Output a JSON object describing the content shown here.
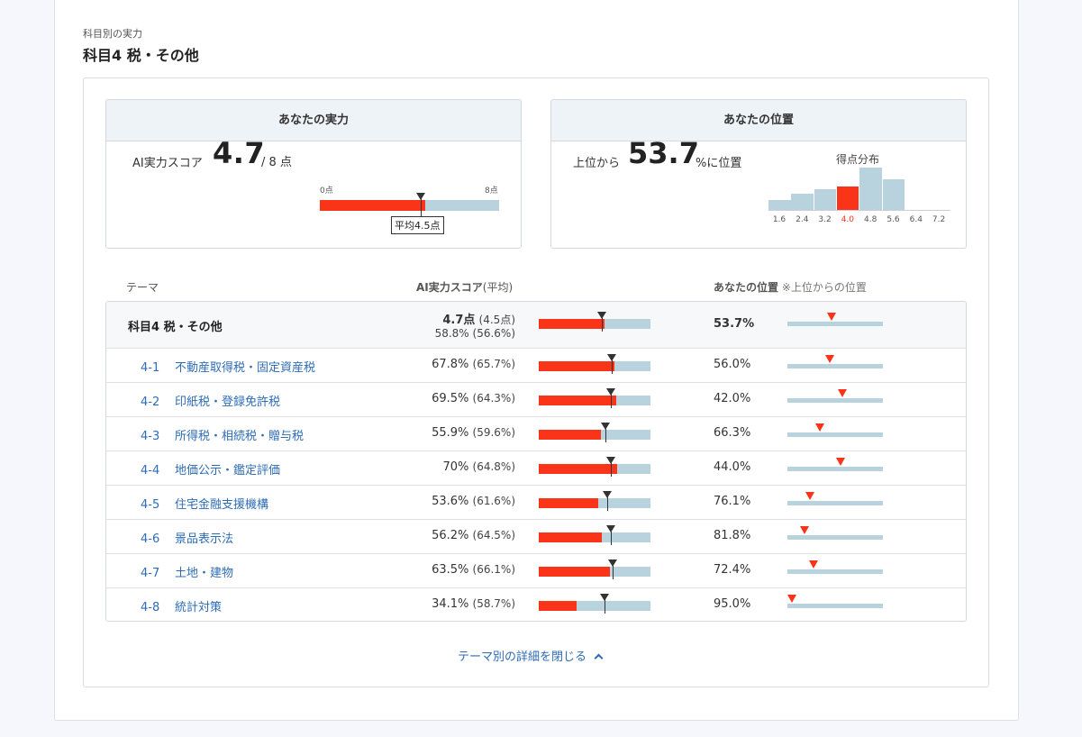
{
  "header": {
    "caption": "科目別の実力",
    "title": "科目4 税・その他"
  },
  "ability_box": {
    "heading": "あなたの実力",
    "label": "AI実力スコア",
    "score": "4.7",
    "max": "/ 8 点",
    "scale_min": "0点",
    "scale_max": "8点",
    "score_fraction": 0.5875,
    "avg_fraction": 0.5625,
    "avg_badge": "平均4.5点"
  },
  "position_box": {
    "heading": "あなたの位置",
    "prefix": "上位から",
    "value": "53.7",
    "suffix": "%に位置",
    "histogram_title": "得点分布",
    "histogram": {
      "ticks": [
        "1.6",
        "2.4",
        "3.2",
        "4.0",
        "4.8",
        "5.6",
        "6.4",
        "7.2"
      ],
      "relative_heights": [
        0.23,
        0.38,
        0.48,
        0.55,
        1.0,
        0.73,
        0,
        0
      ],
      "highlight_index": 3
    }
  },
  "table": {
    "col_theme": "テーマ",
    "col_score": "AI実力スコア",
    "col_score_avg": "(平均)",
    "col_position": "あなたの位置",
    "col_position_note": "※上位からの位置",
    "summary": {
      "name": "科目4 税・その他",
      "score_points": "4.7点",
      "score_points_avg": "(4.5点)",
      "score_pct": "58.8%",
      "score_pct_avg": "(56.6%)",
      "score_fraction": 0.588,
      "avg_fraction": 0.566,
      "rank": "53.7%",
      "rank_fraction": 0.537
    },
    "rows": [
      {
        "code": "4-1",
        "name": "不動産取得税・固定資産税",
        "score": "67.8%",
        "avg": "(65.7%)",
        "score_fraction": 0.678,
        "avg_fraction": 0.657,
        "rank": "56.0%",
        "rank_fraction": 0.56
      },
      {
        "code": "4-2",
        "name": "印紙税・登録免許税",
        "score": "69.5%",
        "avg": "(64.3%)",
        "score_fraction": 0.695,
        "avg_fraction": 0.643,
        "rank": "42.0%",
        "rank_fraction": 0.42
      },
      {
        "code": "4-3",
        "name": "所得税・相続税・贈与税",
        "score": "55.9%",
        "avg": "(59.6%)",
        "score_fraction": 0.559,
        "avg_fraction": 0.596,
        "rank": "66.3%",
        "rank_fraction": 0.663
      },
      {
        "code": "4-4",
        "name": "地価公示・鑑定評価",
        "score": "70%",
        "avg": "(64.8%)",
        "score_fraction": 0.7,
        "avg_fraction": 0.648,
        "rank": "44.0%",
        "rank_fraction": 0.44
      },
      {
        "code": "4-5",
        "name": "住宅金融支援機構",
        "score": "53.6%",
        "avg": "(61.6%)",
        "score_fraction": 0.536,
        "avg_fraction": 0.616,
        "rank": "76.1%",
        "rank_fraction": 0.761
      },
      {
        "code": "4-6",
        "name": "景品表示法",
        "score": "56.2%",
        "avg": "(64.5%)",
        "score_fraction": 0.562,
        "avg_fraction": 0.645,
        "rank": "81.8%",
        "rank_fraction": 0.818
      },
      {
        "code": "4-7",
        "name": "土地・建物",
        "score": "63.5%",
        "avg": "(66.1%)",
        "score_fraction": 0.635,
        "avg_fraction": 0.661,
        "rank": "72.4%",
        "rank_fraction": 0.724
      },
      {
        "code": "4-8",
        "name": "統計対策",
        "score": "34.1%",
        "avg": "(58.7%)",
        "score_fraction": 0.341,
        "avg_fraction": 0.587,
        "rank": "95.0%",
        "rank_fraction": 0.95
      }
    ]
  },
  "footer": {
    "close_label": "テーマ別の詳細を閉じる",
    "close_icon": "chevron-up-icon"
  },
  "colors": {
    "accent": "#fa3419",
    "track": "#b8d2de",
    "link": "#2e6cb5"
  }
}
